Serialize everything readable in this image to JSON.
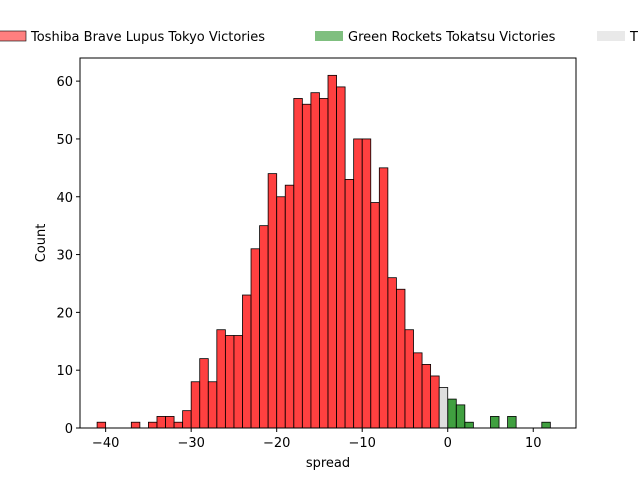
{
  "chart_data": {
    "type": "bar",
    "xlabel": "spread",
    "ylabel": "Count",
    "xlim": [
      -43,
      15
    ],
    "ylim": [
      0,
      64
    ],
    "x_ticks": [
      -40,
      -30,
      -20,
      -10,
      0,
      10
    ],
    "y_ticks": [
      0,
      10,
      20,
      30,
      40,
      50,
      60
    ],
    "bin_width": 1,
    "legend_position": "top (above plot, partially clipped)",
    "series": [
      {
        "name": "Toshiba Brave Lupus Tokyo Victories",
        "color": "#ff0000",
        "bins": [
          {
            "x0": -41,
            "count": 1
          },
          {
            "x0": -37,
            "count": 1
          },
          {
            "x0": -35,
            "count": 1
          },
          {
            "x0": -34,
            "count": 2
          },
          {
            "x0": -33,
            "count": 2
          },
          {
            "x0": -32,
            "count": 1
          },
          {
            "x0": -31,
            "count": 3
          },
          {
            "x0": -30,
            "count": 8
          },
          {
            "x0": -29,
            "count": 12
          },
          {
            "x0": -28,
            "count": 8
          },
          {
            "x0": -27,
            "count": 17
          },
          {
            "x0": -26,
            "count": 16
          },
          {
            "x0": -25,
            "count": 16
          },
          {
            "x0": -24,
            "count": 23
          },
          {
            "x0": -23,
            "count": 31
          },
          {
            "x0": -22,
            "count": 35
          },
          {
            "x0": -21,
            "count": 44
          },
          {
            "x0": -20,
            "count": 40
          },
          {
            "x0": -19,
            "count": 42
          },
          {
            "x0": -18,
            "count": 57
          },
          {
            "x0": -17,
            "count": 56
          },
          {
            "x0": -16,
            "count": 58
          },
          {
            "x0": -15,
            "count": 57
          },
          {
            "x0": -14,
            "count": 61
          },
          {
            "x0": -13,
            "count": 59
          },
          {
            "x0": -12,
            "count": 43
          },
          {
            "x0": -11,
            "count": 50
          },
          {
            "x0": -10,
            "count": 50
          },
          {
            "x0": -9,
            "count": 39
          },
          {
            "x0": -8,
            "count": 45
          },
          {
            "x0": -7,
            "count": 26
          },
          {
            "x0": -6,
            "count": 24
          },
          {
            "x0": -5,
            "count": 17
          },
          {
            "x0": -4,
            "count": 13
          },
          {
            "x0": -3,
            "count": 11
          },
          {
            "x0": -2,
            "count": 9
          }
        ]
      },
      {
        "name": "Green Rockets Tokatsu Victories",
        "color": "#008000",
        "bins": [
          {
            "x0": 0,
            "count": 5
          },
          {
            "x0": 1,
            "count": 4
          },
          {
            "x0": 2,
            "count": 1
          },
          {
            "x0": 5,
            "count": 2
          },
          {
            "x0": 7,
            "count": 2
          },
          {
            "x0": 11,
            "count": 1
          }
        ]
      },
      {
        "name": "T",
        "color": "#d3d3d3",
        "bins": [
          {
            "x0": -1,
            "count": 7
          }
        ]
      }
    ]
  }
}
